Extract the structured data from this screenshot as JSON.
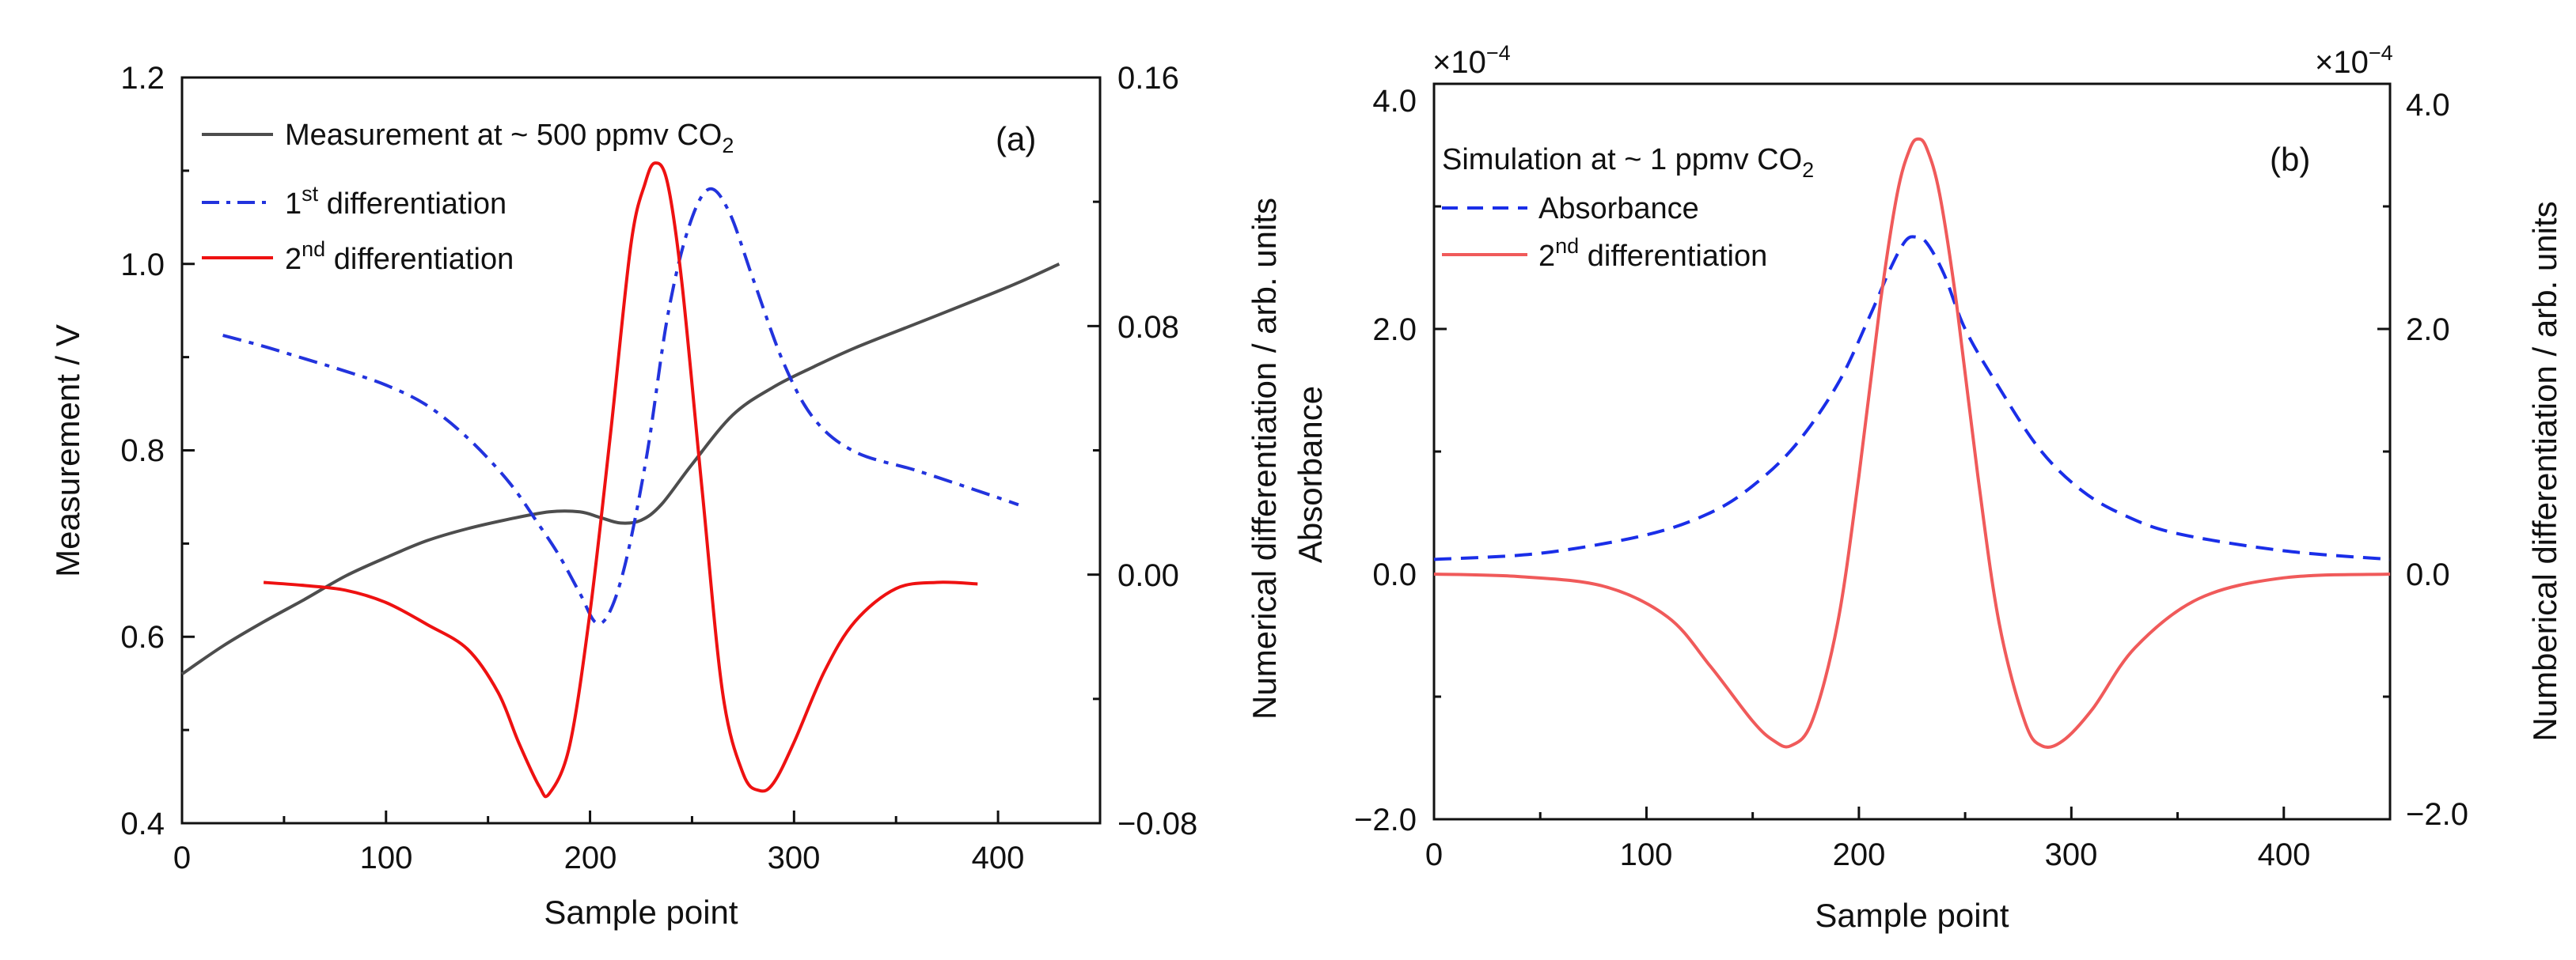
{
  "chart_data": [
    {
      "type": "line",
      "panel_label": "(a)",
      "xlabel": "Sample point",
      "ylabel": "Measurement / V",
      "y2label": "Numerical differentiation / arb. units",
      "xlim": [
        0,
        450
      ],
      "ylim": [
        0.4,
        1.2
      ],
      "y2lim": [
        -0.08,
        0.16
      ],
      "xticks": [
        "0",
        "100",
        "200",
        "300",
        "400"
      ],
      "yticks": [
        "0.4",
        "0.6",
        "0.8",
        "1.0",
        "1.2"
      ],
      "y2ticks": [
        "−0.08",
        "0.00",
        "0.08",
        "0.16"
      ],
      "legend": {
        "measurement": {
          "text": "Measurement at ~ 500 ppmv CO",
          "sub": "2"
        },
        "first": {
          "pre": "1",
          "sup": "st",
          "text": " differentiation"
        },
        "second": {
          "pre": "2",
          "sup": "nd",
          "text": " differentiation"
        }
      },
      "series": [
        {
          "name": "Measurement at ~ 500 ppmv CO2",
          "axis": "left",
          "color": "#4d4d4d",
          "style": "solid",
          "x": [
            0,
            20,
            40,
            60,
            80,
            100,
            120,
            140,
            160,
            180,
            195,
            205,
            215,
            225,
            235,
            250,
            270,
            290,
            310,
            330,
            360,
            390,
            410,
            430
          ],
          "y": [
            0.56,
            0.59,
            0.616,
            0.64,
            0.665,
            0.685,
            0.703,
            0.716,
            0.726,
            0.734,
            0.734,
            0.728,
            0.722,
            0.725,
            0.742,
            0.785,
            0.838,
            0.868,
            0.89,
            0.91,
            0.936,
            0.962,
            0.98,
            1.0
          ]
        },
        {
          "name": "1st differentiation",
          "axis": "right",
          "color": "#2233dd",
          "style": "dashdot",
          "x": [
            20,
            40,
            60,
            80,
            100,
            120,
            140,
            160,
            175,
            185,
            195,
            203,
            210,
            218,
            228,
            238,
            248,
            258,
            268,
            280,
            295,
            310,
            330,
            360,
            390,
            410
          ],
          "y": [
            0.077,
            0.0735,
            0.0695,
            0.0655,
            0.061,
            0.0545,
            0.044,
            0.03,
            0.016,
            0.006,
            -0.006,
            -0.0155,
            -0.0115,
            0.0055,
            0.039,
            0.083,
            0.111,
            0.124,
            0.117,
            0.095,
            0.068,
            0.05,
            0.0395,
            0.0335,
            0.027,
            0.0225
          ]
        },
        {
          "name": "2nd differentiation",
          "axis": "right",
          "color": "#ee1111",
          "style": "solid",
          "x": [
            40,
            60,
            80,
            100,
            120,
            140,
            155,
            165,
            175,
            180,
            190,
            200,
            210,
            220,
            227,
            232,
            238,
            245,
            255,
            265,
            275,
            283,
            290,
            300,
            315,
            330,
            350,
            370,
            390
          ],
          "y": [
            -0.0025,
            -0.0035,
            -0.005,
            -0.009,
            -0.016,
            -0.024,
            -0.038,
            -0.054,
            -0.068,
            -0.0705,
            -0.055,
            -0.012,
            0.045,
            0.106,
            0.126,
            0.1325,
            0.126,
            0.094,
            0.027,
            -0.038,
            -0.064,
            -0.0695,
            -0.067,
            -0.054,
            -0.031,
            -0.015,
            -0.0045,
            -0.0025,
            -0.003
          ]
        }
      ]
    },
    {
      "type": "line",
      "panel_label": "(b)",
      "xlabel": "Sample point",
      "ylabel": "Absorbance",
      "y2label": "Numberical differentiation / arb. units",
      "scale_left": "×10",
      "scale_left_exp": "−4",
      "scale_right": "×10",
      "scale_right_exp": "−4",
      "xlim": [
        0,
        450
      ],
      "ylim": [
        -2.0,
        4.0
      ],
      "y2lim": [
        -2.0,
        4.0
      ],
      "xticks": [
        "0",
        "100",
        "200",
        "300",
        "400"
      ],
      "yticks": [
        "−2.0",
        "0.0",
        "2.0",
        "4.0"
      ],
      "y2ticks": [
        "−2.0",
        "0.0",
        "2.0",
        "4.0"
      ],
      "legend": {
        "title": {
          "text": "Simulation at ~ 1 ppmv CO",
          "sub": "2"
        },
        "absorbance": {
          "text": "Absorbance"
        },
        "second": {
          "pre": "2",
          "sup": "nd",
          "text": " differentiation"
        }
      },
      "series": [
        {
          "name": "Absorbance",
          "axis": "left",
          "color": "#1a2ee8",
          "style": "dashed",
          "x": [
            0,
            50,
            100,
            130,
            150,
            170,
            190,
            205,
            215,
            222,
            227,
            232,
            240,
            250,
            265,
            285,
            305,
            325,
            350,
            400,
            450
          ],
          "y": [
            0.12,
            0.17,
            0.32,
            0.5,
            0.72,
            1.05,
            1.55,
            2.1,
            2.5,
            2.72,
            2.75,
            2.7,
            2.45,
            2.0,
            1.55,
            1.02,
            0.68,
            0.48,
            0.33,
            0.19,
            0.12
          ]
        },
        {
          "name": "2nd differentiation",
          "axis": "right",
          "color": "#f05a5a",
          "style": "solid",
          "x": [
            0,
            40,
            80,
            110,
            130,
            150,
            160,
            168,
            178,
            190,
            200,
            210,
            218,
            224,
            228,
            232,
            238,
            246,
            256,
            266,
            278,
            286,
            296,
            310,
            330,
            360,
            400,
            450
          ],
          "y": [
            0.0,
            -0.02,
            -0.1,
            -0.35,
            -0.75,
            -1.2,
            -1.36,
            -1.4,
            -1.2,
            -0.4,
            0.8,
            2.2,
            3.1,
            3.47,
            3.55,
            3.47,
            3.1,
            2.2,
            0.8,
            -0.4,
            -1.2,
            -1.4,
            -1.36,
            -1.1,
            -0.6,
            -0.2,
            -0.03,
            0.0
          ]
        }
      ]
    }
  ]
}
